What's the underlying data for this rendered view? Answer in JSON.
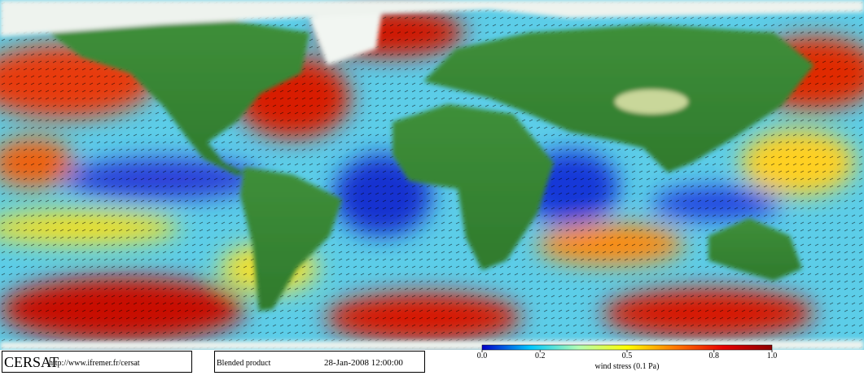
{
  "map": {
    "logo": "CERSAT",
    "url": "http://www.ifremer.fr/cersat",
    "product": "Blended product",
    "date": "28-Jan-2008 12:00:00"
  },
  "colorbar": {
    "title": "wind stress (0.1 Pa)",
    "lim": [
      0,
      1
    ],
    "ticks": [
      {
        "value": 0,
        "label": "0.0"
      },
      0.2,
      0.5,
      0.8,
      {
        "value": 1,
        "label": "1.0"
      }
    ],
    "colors": [
      "#0000c8",
      "#00c8ff",
      "#b4ffb4",
      "#ffff00",
      "#ff7800",
      "#e60000",
      "#8c0000"
    ]
  }
}
